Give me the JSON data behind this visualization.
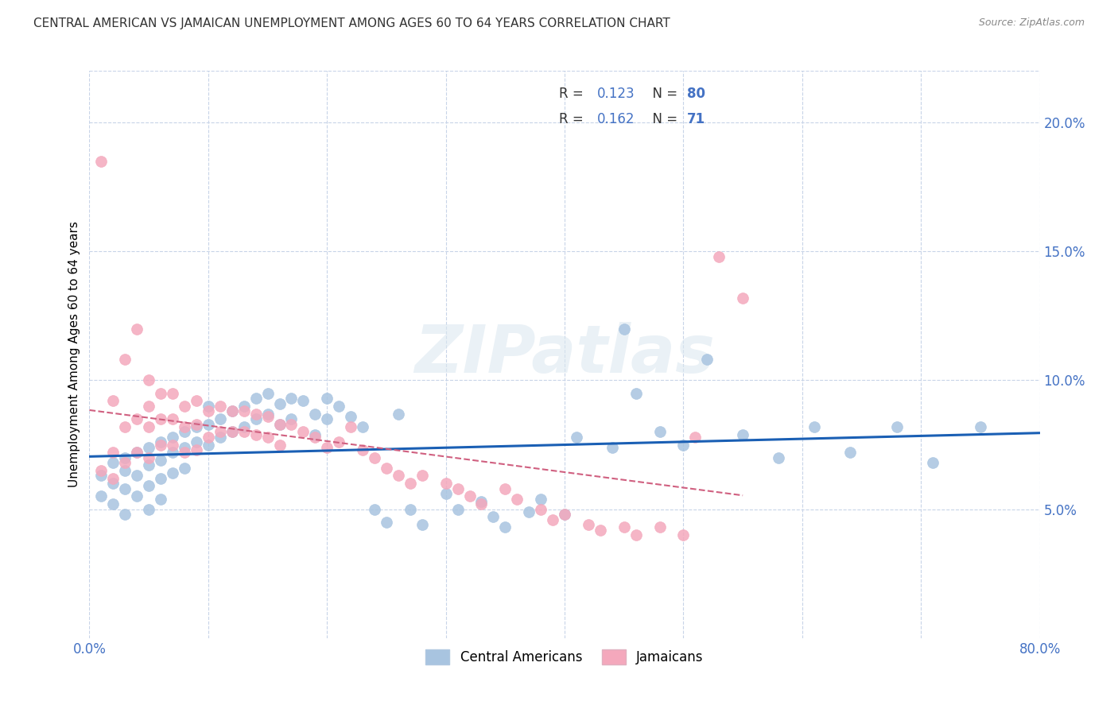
{
  "title": "CENTRAL AMERICAN VS JAMAICAN UNEMPLOYMENT AMONG AGES 60 TO 64 YEARS CORRELATION CHART",
  "source": "Source: ZipAtlas.com",
  "ylabel": "Unemployment Among Ages 60 to 64 years",
  "ytick_labels": [
    "5.0%",
    "10.0%",
    "15.0%",
    "20.0%"
  ],
  "ytick_values": [
    0.05,
    0.1,
    0.15,
    0.2
  ],
  "xlim": [
    0.0,
    0.8
  ],
  "ylim": [
    0.0,
    0.22
  ],
  "blue_color": "#a8c4e0",
  "pink_color": "#f4a8bc",
  "blue_line_color": "#1a5fb4",
  "pink_line_color": "#d06080",
  "grid_color": "#c8d4e8",
  "background_color": "#ffffff",
  "watermark_zip": "ZIP",
  "watermark_atlas": "atlas",
  "blue_R": 0.123,
  "blue_N": 80,
  "pink_R": 0.162,
  "pink_N": 71,
  "blue_scatter_x": [
    0.01,
    0.01,
    0.02,
    0.02,
    0.02,
    0.03,
    0.03,
    0.03,
    0.03,
    0.04,
    0.04,
    0.04,
    0.05,
    0.05,
    0.05,
    0.05,
    0.06,
    0.06,
    0.06,
    0.06,
    0.07,
    0.07,
    0.07,
    0.08,
    0.08,
    0.08,
    0.09,
    0.09,
    0.1,
    0.1,
    0.1,
    0.11,
    0.11,
    0.12,
    0.12,
    0.13,
    0.13,
    0.14,
    0.14,
    0.15,
    0.15,
    0.16,
    0.16,
    0.17,
    0.17,
    0.18,
    0.19,
    0.19,
    0.2,
    0.2,
    0.21,
    0.22,
    0.23,
    0.24,
    0.25,
    0.26,
    0.27,
    0.28,
    0.3,
    0.31,
    0.33,
    0.34,
    0.35,
    0.37,
    0.38,
    0.4,
    0.41,
    0.44,
    0.45,
    0.46,
    0.48,
    0.5,
    0.52,
    0.55,
    0.58,
    0.61,
    0.64,
    0.68,
    0.71,
    0.75
  ],
  "blue_scatter_y": [
    0.063,
    0.055,
    0.068,
    0.06,
    0.052,
    0.07,
    0.065,
    0.058,
    0.048,
    0.072,
    0.063,
    0.055,
    0.074,
    0.067,
    0.059,
    0.05,
    0.076,
    0.069,
    0.062,
    0.054,
    0.078,
    0.072,
    0.064,
    0.08,
    0.074,
    0.066,
    0.082,
    0.076,
    0.09,
    0.083,
    0.075,
    0.085,
    0.078,
    0.088,
    0.08,
    0.09,
    0.082,
    0.093,
    0.085,
    0.095,
    0.087,
    0.091,
    0.083,
    0.093,
    0.085,
    0.092,
    0.087,
    0.079,
    0.093,
    0.085,
    0.09,
    0.086,
    0.082,
    0.05,
    0.045,
    0.087,
    0.05,
    0.044,
    0.056,
    0.05,
    0.053,
    0.047,
    0.043,
    0.049,
    0.054,
    0.048,
    0.078,
    0.074,
    0.12,
    0.095,
    0.08,
    0.075,
    0.108,
    0.079,
    0.07,
    0.082,
    0.072,
    0.082,
    0.068,
    0.082
  ],
  "pink_scatter_x": [
    0.01,
    0.01,
    0.02,
    0.02,
    0.02,
    0.03,
    0.03,
    0.03,
    0.04,
    0.04,
    0.04,
    0.05,
    0.05,
    0.05,
    0.05,
    0.06,
    0.06,
    0.06,
    0.07,
    0.07,
    0.07,
    0.08,
    0.08,
    0.08,
    0.09,
    0.09,
    0.09,
    0.1,
    0.1,
    0.11,
    0.11,
    0.12,
    0.12,
    0.13,
    0.13,
    0.14,
    0.14,
    0.15,
    0.15,
    0.16,
    0.16,
    0.17,
    0.18,
    0.19,
    0.2,
    0.21,
    0.22,
    0.23,
    0.24,
    0.25,
    0.26,
    0.27,
    0.28,
    0.3,
    0.31,
    0.32,
    0.33,
    0.35,
    0.36,
    0.38,
    0.39,
    0.4,
    0.42,
    0.43,
    0.45,
    0.46,
    0.48,
    0.5,
    0.51,
    0.53,
    0.55
  ],
  "pink_scatter_y": [
    0.185,
    0.065,
    0.092,
    0.072,
    0.062,
    0.108,
    0.082,
    0.068,
    0.12,
    0.085,
    0.072,
    0.1,
    0.09,
    0.082,
    0.07,
    0.095,
    0.085,
    0.075,
    0.095,
    0.085,
    0.075,
    0.09,
    0.082,
    0.072,
    0.092,
    0.083,
    0.073,
    0.088,
    0.078,
    0.09,
    0.08,
    0.088,
    0.08,
    0.088,
    0.08,
    0.087,
    0.079,
    0.086,
    0.078,
    0.083,
    0.075,
    0.083,
    0.08,
    0.078,
    0.074,
    0.076,
    0.082,
    0.073,
    0.07,
    0.066,
    0.063,
    0.06,
    0.063,
    0.06,
    0.058,
    0.055,
    0.052,
    0.058,
    0.054,
    0.05,
    0.046,
    0.048,
    0.044,
    0.042,
    0.043,
    0.04,
    0.043,
    0.04,
    0.078,
    0.148,
    0.132
  ]
}
